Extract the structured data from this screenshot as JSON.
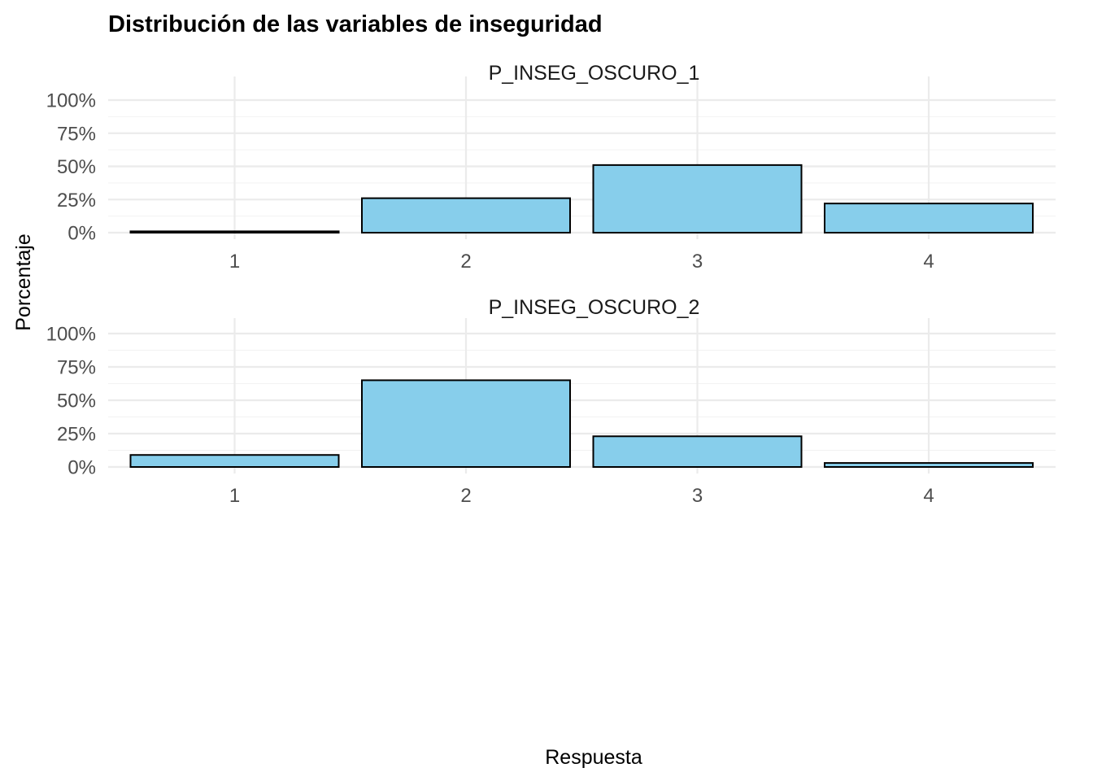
{
  "chart_data": {
    "type": "bar",
    "title": "Distribución de las variables de inseguridad",
    "xlabel": "Respuesta",
    "ylabel": "Porcentaje",
    "ylim": [
      0,
      1
    ],
    "yticks": [
      "0%",
      "25%",
      "50%",
      "75%",
      "100%"
    ],
    "grid": true,
    "bar_fill": "#87CEEB",
    "bar_outline": "#000000",
    "categories": [
      "1",
      "2",
      "3",
      "4"
    ],
    "panels": [
      {
        "name": "P_INSEG_OSCURO_1",
        "values": [
          0.01,
          0.26,
          0.51,
          0.22
        ]
      },
      {
        "name": "P_INSEG_OSCURO_2",
        "values": [
          0.09,
          0.65,
          0.23,
          0.03
        ]
      }
    ]
  }
}
